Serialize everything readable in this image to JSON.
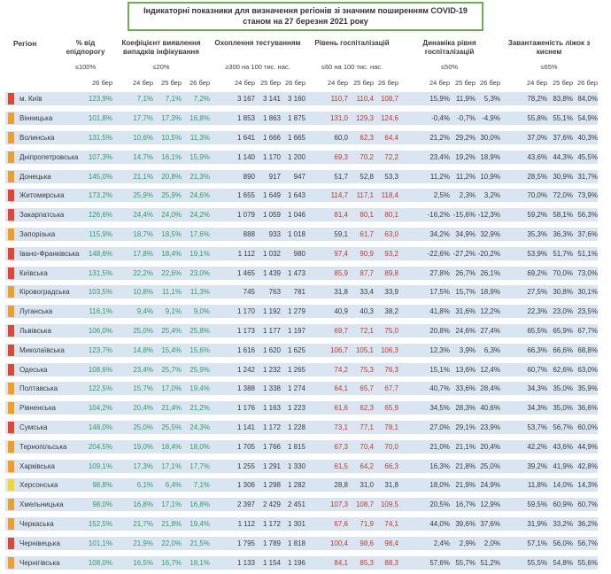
{
  "title": {
    "line1": "Індикаторні показники для визначення регіонів зі значним поширенням COVID-19",
    "line2": "станом на 27 березня 2021 року"
  },
  "columns": {
    "region": "Регіон",
    "groups": [
      {
        "name": "% від епідпорогу",
        "threshold": "≤100%",
        "dates": [
          "26 бер"
        ]
      },
      {
        "name": "Коефіцієнт виявлення випадків інфікування",
        "threshold": "≤20%",
        "dates": [
          "24 бер",
          "25 бер",
          "26 бер"
        ]
      },
      {
        "name": "Охоплення тестуванням",
        "threshold": "≥300 на 100 тис. нас.",
        "dates": [
          "24 бер",
          "25 бер",
          "26 бер"
        ]
      },
      {
        "name": "Рівень госпіталізацій",
        "threshold": "≤60 на 100 тис. нас.",
        "dates": [
          "24 бер",
          "25 бер",
          "26 бер"
        ]
      },
      {
        "name": "Динаміка рівня госпіталізацій",
        "threshold": "≤50%",
        "dates": [
          "24 бер",
          "25 бер",
          "26 бер"
        ]
      },
      {
        "name": "Завантаженість ліжок з киснем",
        "threshold": "≤65%",
        "dates": [
          "24 бер",
          "25 бер",
          "26 бер"
        ]
      }
    ]
  },
  "colors": {
    "level": {
      "red": "#e8432e",
      "orange": "#f59d20",
      "yellow": "#f3da1c"
    },
    "value_green": "#2e9c64",
    "value_red": "#c0392b",
    "row_bg": "#d9e6f2",
    "title_border": "#6fae4e",
    "hosp_red_threshold": 60
  },
  "rows": [
    {
      "region": "м. Київ",
      "level": "red",
      "epid": "123,9%",
      "detect": [
        "7,1%",
        "7,1%",
        "7,2%"
      ],
      "tests": [
        "3 167",
        "3 141",
        "3 160"
      ],
      "hosp": [
        "110,7",
        "110,4",
        "108,7"
      ],
      "dynamics": [
        "15,9%",
        "11,9%",
        "5,3%"
      ],
      "beds": [
        "78,2%",
        "83,8%",
        "84,0%"
      ]
    },
    {
      "region": "Вінницька",
      "level": "orange",
      "epid": "101,8%",
      "detect": [
        "17,7%",
        "17,3%",
        "16,8%"
      ],
      "tests": [
        "1 853",
        "1 863",
        "1 875"
      ],
      "hosp": [
        "131,0",
        "129,3",
        "124,6"
      ],
      "dynamics": [
        "-0,4%",
        "-0,7%",
        "-4,9%"
      ],
      "beds": [
        "55,8%",
        "55,1%",
        "54,9%"
      ]
    },
    {
      "region": "Волинська",
      "level": "orange",
      "epid": "131,5%",
      "detect": [
        "10,6%",
        "10,5%",
        "11,3%"
      ],
      "tests": [
        "1 641",
        "1 666",
        "1 665"
      ],
      "hosp": [
        "60,0",
        "62,3",
        "64,4"
      ],
      "dynamics": [
        "21,2%",
        "29,2%",
        "30,0%"
      ],
      "beds": [
        "37,0%",
        "37,6%",
        "40,3%"
      ]
    },
    {
      "region": "Дніпропетровська",
      "level": "orange",
      "epid": "107,3%",
      "detect": [
        "14,7%",
        "16,1%",
        "15,9%"
      ],
      "tests": [
        "1 140",
        "1 170",
        "1 200"
      ],
      "hosp": [
        "69,3",
        "70,2",
        "72,2"
      ],
      "dynamics": [
        "23,4%",
        "19,2%",
        "18,9%"
      ],
      "beds": [
        "43,6%",
        "44,3%",
        "45,5%"
      ]
    },
    {
      "region": "Донецька",
      "level": "orange",
      "epid": "145,0%",
      "detect": [
        "21,1%",
        "20,8%",
        "21,3%"
      ],
      "tests": [
        "890",
        "917",
        "947"
      ],
      "hosp": [
        "51,7",
        "52,8",
        "53,3"
      ],
      "dynamics": [
        "11,2%",
        "11,2%",
        "10,9%"
      ],
      "beds": [
        "28,5%",
        "30,9%",
        "31,7%"
      ]
    },
    {
      "region": "Житомирська",
      "level": "red",
      "epid": "173,2%",
      "detect": [
        "25,9%",
        "25,9%",
        "24,6%"
      ],
      "tests": [
        "1 655",
        "1 649",
        "1 643"
      ],
      "hosp": [
        "114,7",
        "117,1",
        "118,4"
      ],
      "dynamics": [
        "2,5%",
        "2,3%",
        "3,2%"
      ],
      "beds": [
        "70,0%",
        "72,0%",
        "73,9%"
      ]
    },
    {
      "region": "Закарпатська",
      "level": "red",
      "epid": "126,6%",
      "detect": [
        "24,4%",
        "24,0%",
        "24,2%"
      ],
      "tests": [
        "1 079",
        "1 059",
        "1 046"
      ],
      "hosp": [
        "81,4",
        "80,1",
        "80,1"
      ],
      "dynamics": [
        "-16,2%",
        "-15,6%",
        "-12,3%"
      ],
      "beds": [
        "59,2%",
        "58,1%",
        "56,3%"
      ]
    },
    {
      "region": "Запорізька",
      "level": "orange",
      "epid": "115,9%",
      "detect": [
        "18,7%",
        "18,5%",
        "17,6%"
      ],
      "tests": [
        "888",
        "933",
        "1 018"
      ],
      "hosp": [
        "59,1",
        "61,7",
        "63,0"
      ],
      "dynamics": [
        "34,2%",
        "34,9%",
        "32,9%"
      ],
      "beds": [
        "35,3%",
        "36,3%",
        "37,6%"
      ]
    },
    {
      "region": "Івано-Франківська",
      "level": "red",
      "epid": "148,6%",
      "detect": [
        "17,8%",
        "18,4%",
        "19,1%"
      ],
      "tests": [
        "1 112",
        "1 032",
        "980"
      ],
      "hosp": [
        "97,4",
        "90,9",
        "93,2"
      ],
      "dynamics": [
        "-22,6%",
        "-27,2%",
        "-20,2%"
      ],
      "beds": [
        "53,9%",
        "51,7%",
        "51,1%"
      ]
    },
    {
      "region": "Київська",
      "level": "red",
      "epid": "131,5%",
      "detect": [
        "22,2%",
        "22,6%",
        "23,0%"
      ],
      "tests": [
        "1 465",
        "1 439",
        "1 473"
      ],
      "hosp": [
        "85,9",
        "87,7",
        "89,8"
      ],
      "dynamics": [
        "27,8%",
        "26,7%",
        "26,1%"
      ],
      "beds": [
        "69,2%",
        "70,0%",
        "73,0%"
      ]
    },
    {
      "region": "Кіровоградська",
      "level": "orange",
      "epid": "103,5%",
      "detect": [
        "10,8%",
        "11,1%",
        "11,3%"
      ],
      "tests": [
        "745",
        "763",
        "781"
      ],
      "hosp": [
        "31,8",
        "33,4",
        "33,9"
      ],
      "dynamics": [
        "17,5%",
        "15,7%",
        "18,9%"
      ],
      "beds": [
        "27,5%",
        "30,8%",
        "30,1%"
      ]
    },
    {
      "region": "Луганська",
      "level": "orange",
      "epid": "116,1%",
      "detect": [
        "9,4%",
        "9,1%",
        "9,0%"
      ],
      "tests": [
        "1 170",
        "1 192",
        "1 279"
      ],
      "hosp": [
        "40,9",
        "40,3",
        "38,2"
      ],
      "dynamics": [
        "41,8%",
        "31,6%",
        "12,2%"
      ],
      "beds": [
        "22,3%",
        "23,0%",
        "23,5%"
      ]
    },
    {
      "region": "Львівська",
      "level": "red",
      "epid": "106,0%",
      "detect": [
        "25,0%",
        "25,4%",
        "25,8%"
      ],
      "tests": [
        "1 173",
        "1 177",
        "1 197"
      ],
      "hosp": [
        "69,7",
        "72,1",
        "75,0"
      ],
      "dynamics": [
        "20,8%",
        "24,6%",
        "27,4%"
      ],
      "beds": [
        "65,5%",
        "65,9%",
        "67,7%"
      ]
    },
    {
      "region": "Миколаївська",
      "level": "red",
      "epid": "123,7%",
      "detect": [
        "14,8%",
        "15,4%",
        "15,6%"
      ],
      "tests": [
        "1 616",
        "1 620",
        "1 625"
      ],
      "hosp": [
        "106,7",
        "105,1",
        "106,3"
      ],
      "dynamics": [
        "12,3%",
        "3,9%",
        "6,3%"
      ],
      "beds": [
        "66,3%",
        "66,6%",
        "68,8%"
      ]
    },
    {
      "region": "Одеська",
      "level": "red",
      "epid": "108,6%",
      "detect": [
        "23,4%",
        "25,7%",
        "25,9%"
      ],
      "tests": [
        "1 242",
        "1 232",
        "1 265"
      ],
      "hosp": [
        "74,2",
        "75,3",
        "76,3"
      ],
      "dynamics": [
        "15,1%",
        "13,6%",
        "12,4%"
      ],
      "beds": [
        "60,7%",
        "62,6%",
        "63,0%"
      ]
    },
    {
      "region": "Полтавська",
      "level": "orange",
      "epid": "122,5%",
      "detect": [
        "15,7%",
        "17,0%",
        "19,4%"
      ],
      "tests": [
        "1 388",
        "1 338",
        "1 274"
      ],
      "hosp": [
        "64,1",
        "65,7",
        "67,7"
      ],
      "dynamics": [
        "40,7%",
        "33,6%",
        "28,4%"
      ],
      "beds": [
        "34,3%",
        "35,0%",
        "35,9%"
      ]
    },
    {
      "region": "Рівненська",
      "level": "orange",
      "epid": "104,2%",
      "detect": [
        "20,4%",
        "21,4%",
        "21,2%"
      ],
      "tests": [
        "1 176",
        "1 163",
        "1 223"
      ],
      "hosp": [
        "61,6",
        "62,3",
        "65,9"
      ],
      "dynamics": [
        "34,5%",
        "28,3%",
        "40,6%"
      ],
      "beds": [
        "34,3%",
        "35,0%",
        "36,6%"
      ]
    },
    {
      "region": "Сумська",
      "level": "red",
      "epid": "148,0%",
      "detect": [
        "25,0%",
        "25,5%",
        "24,3%"
      ],
      "tests": [
        "1 141",
        "1 172",
        "1 228"
      ],
      "hosp": [
        "73,1",
        "77,1",
        "78,1"
      ],
      "dynamics": [
        "27,0%",
        "29,1%",
        "23,9%"
      ],
      "beds": [
        "53,7%",
        "56,7%",
        "60,0%"
      ]
    },
    {
      "region": "Тернопільська",
      "level": "orange",
      "epid": "204,5%",
      "detect": [
        "19,0%",
        "18,4%",
        "18,0%"
      ],
      "tests": [
        "1 705",
        "1 766",
        "1 815"
      ],
      "hosp": [
        "67,3",
        "70,4",
        "70,0"
      ],
      "dynamics": [
        "21,0%",
        "21,1%",
        "20,4%"
      ],
      "beds": [
        "42,2%",
        "43,6%",
        "44,9%"
      ]
    },
    {
      "region": "Харківська",
      "level": "orange",
      "epid": "109,1%",
      "detect": [
        "17,3%",
        "17,1%",
        "17,7%"
      ],
      "tests": [
        "1 255",
        "1 291",
        "1 330"
      ],
      "hosp": [
        "61,5",
        "64,2",
        "66,3"
      ],
      "dynamics": [
        "16,3%",
        "21,8%",
        "25,0%"
      ],
      "beds": [
        "39,2%",
        "41,9%",
        "42,8%"
      ]
    },
    {
      "region": "Херсонська",
      "level": "yellow",
      "epid": "98,8%",
      "detect": [
        "6,1%",
        "6,4%",
        "7,1%"
      ],
      "tests": [
        "1 306",
        "1 298",
        "1 282"
      ],
      "hosp": [
        "28,8",
        "31,0",
        "31,8"
      ],
      "dynamics": [
        "18,0%",
        "21,9%",
        "24,9%"
      ],
      "beds": [
        "11,8%",
        "14,0%",
        "14,3%"
      ]
    },
    {
      "region": "Хмельницька",
      "level": "orange",
      "epid": "98,0%",
      "detect": [
        "16,8%",
        "17,1%",
        "16,8%"
      ],
      "tests": [
        "2 397",
        "2 429",
        "2 451"
      ],
      "hosp": [
        "107,3",
        "108,7",
        "109,5"
      ],
      "dynamics": [
        "20,5%",
        "16,7%",
        "12,9%"
      ],
      "beds": [
        "59,5%",
        "60,9%",
        "60,7%"
      ]
    },
    {
      "region": "Черкаська",
      "level": "orange",
      "epid": "152,5%",
      "detect": [
        "21,7%",
        "21,8%",
        "19,4%"
      ],
      "tests": [
        "1 112",
        "1 172",
        "1 301"
      ],
      "hosp": [
        "67,6",
        "71,9",
        "74,1"
      ],
      "dynamics": [
        "44,0%",
        "39,6%",
        "37,6%"
      ],
      "beds": [
        "31,9%",
        "33,2%",
        "36,2%"
      ]
    },
    {
      "region": "Чернівецька",
      "level": "red",
      "epid": "101,1%",
      "detect": [
        "21,9%",
        "22,0%",
        "21,5%"
      ],
      "tests": [
        "1 795",
        "1 789",
        "1 818"
      ],
      "hosp": [
        "100,4",
        "98,6",
        "98,4"
      ],
      "dynamics": [
        "2,4%",
        "2,9%",
        "2,0%"
      ],
      "beds": [
        "57,1%",
        "56,0%",
        "56,7%"
      ]
    },
    {
      "region": "Чернігівська",
      "level": "orange",
      "epid": "108,0%",
      "detect": [
        "16,5%",
        "16,7%",
        "18,1%"
      ],
      "tests": [
        "1 133",
        "1 154",
        "1 196"
      ],
      "hosp": [
        "84,1",
        "85,3",
        "88,3"
      ],
      "dynamics": [
        "57,6%",
        "55,7%",
        "51,2%"
      ],
      "beds": [
        "55,5%",
        "54,8%",
        "55,6%"
      ]
    }
  ]
}
